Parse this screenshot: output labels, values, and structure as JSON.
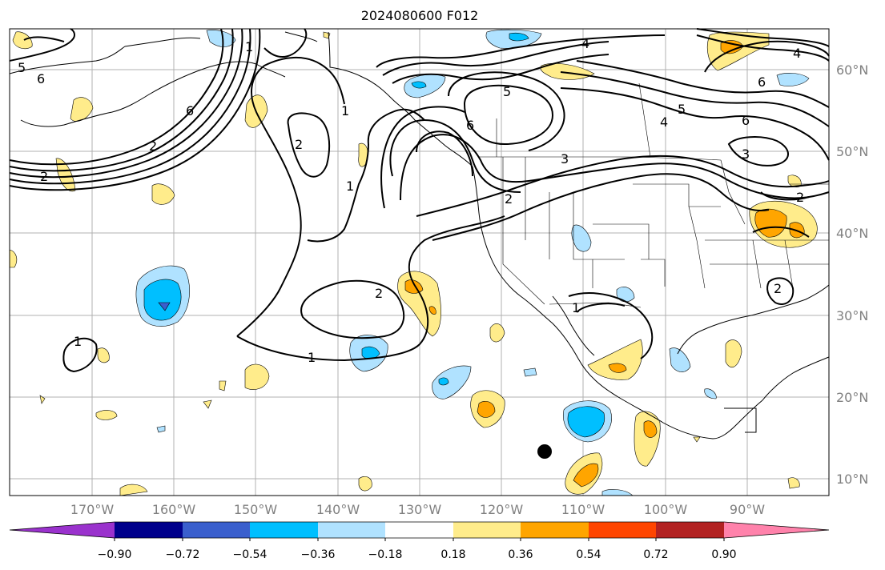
{
  "title": "2024080600 F012",
  "lon_labels": [
    "170°W",
    "160°W",
    "150°W",
    "140°W",
    "130°W",
    "120°W",
    "110°W",
    "100°W",
    "90°W"
  ],
  "lat_labels": [
    "60°N",
    "50°N",
    "40°N",
    "30°N",
    "20°N",
    "10°N"
  ],
  "colorbar": {
    "ticks": [
      "−0.90",
      "−0.72",
      "−0.54",
      "−0.36",
      "−0.18",
      "0.18",
      "0.36",
      "0.54",
      "0.72",
      "0.90"
    ],
    "colors": [
      "#9a32cd",
      "#00008b",
      "#3a5fcd",
      "#00bfff",
      "#b0e2ff",
      "#ffffff",
      "#ffec8b",
      "#ffa500",
      "#ff4500",
      "#b22222",
      "#ff82ab"
    ]
  },
  "contour_labels": {
    "c1": "1",
    "c2": "2",
    "c3": "3",
    "c4": "4",
    "c5": "5",
    "c6": "6"
  },
  "fill_colors": {
    "yellow": "#ffec8b",
    "orange": "#ffa500",
    "lightblue": "#b0e2ff",
    "blue": "#00bfff",
    "indigo": "#3a5fcd"
  }
}
